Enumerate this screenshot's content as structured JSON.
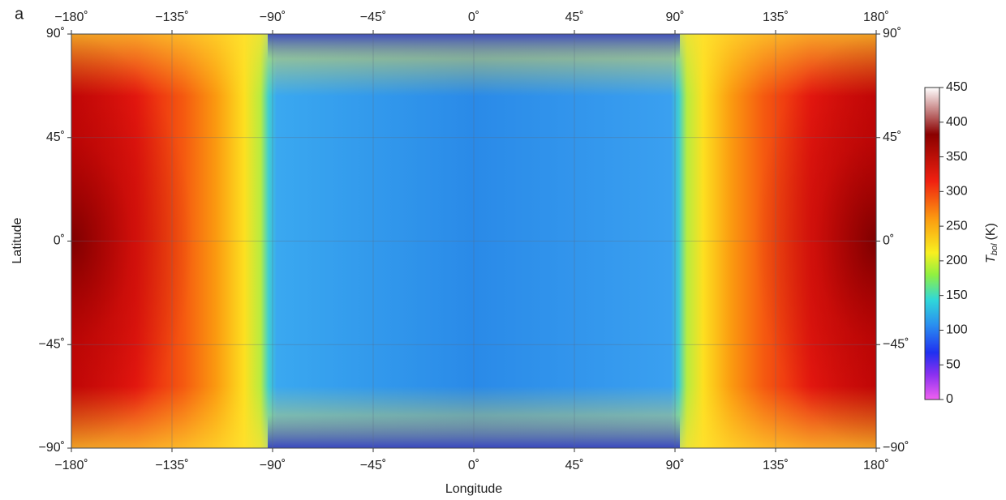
{
  "chart_data": {
    "type": "map",
    "panel_label": "a",
    "xlabel": "Longitude",
    "ylabel": "Latitude",
    "xlim": [
      -180,
      180
    ],
    "ylim": [
      -90,
      90
    ],
    "xticks": [
      {
        "value": -180,
        "label": "−180˚"
      },
      {
        "value": -135,
        "label": "−135˚"
      },
      {
        "value": -90,
        "label": "−90˚"
      },
      {
        "value": -45,
        "label": "−45˚"
      },
      {
        "value": 0,
        "label": "0˚"
      },
      {
        "value": 45,
        "label": "45˚"
      },
      {
        "value": 90,
        "label": "90˚"
      },
      {
        "value": 135,
        "label": "135˚"
      },
      {
        "value": 180,
        "label": "180˚"
      }
    ],
    "yticks": [
      {
        "value": -90,
        "label": "−90˚"
      },
      {
        "value": -45,
        "label": "−45˚"
      },
      {
        "value": 0,
        "label": "0˚"
      },
      {
        "value": 45,
        "label": "45˚"
      },
      {
        "value": 90,
        "label": "90˚"
      }
    ],
    "grid": true,
    "colorbar": {
      "label": {
        "symbol": "T",
        "subscript": "bol",
        "unit": "(K)"
      },
      "lim": [
        0,
        450
      ],
      "ticks": [
        0,
        50,
        100,
        150,
        200,
        250,
        300,
        350,
        400,
        450
      ]
    }
  }
}
